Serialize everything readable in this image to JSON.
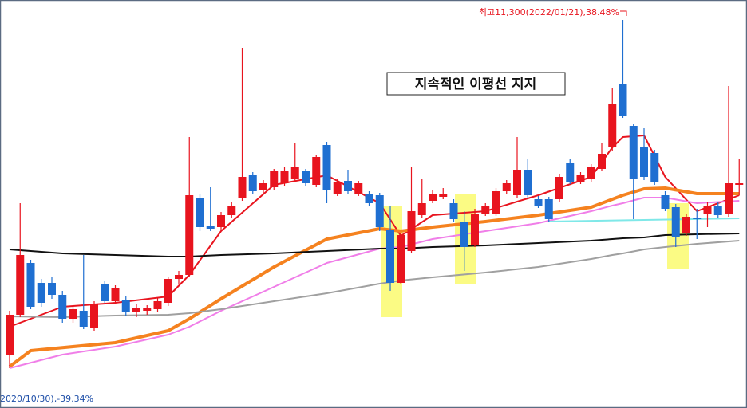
{
  "chart_data": {
    "type": "candlestick",
    "title": "지속적인 이평선 지지",
    "annotations": [
      "최고11,300(2022/01/21),38.48%",
      "2020/10/30),-39.34%"
    ],
    "up_color": "#e8141e",
    "down_color": "#1f6fd1",
    "ylim": [
      4944,
      11600
    ],
    "candles": {
      "open": [
        5815,
        6465,
        7310,
        6985,
        6985,
        6790,
        6400,
        6530,
        6244,
        6972,
        6686,
        6712,
        6504,
        6530,
        6556,
        6660,
        7050,
        7115,
        8376,
        7921,
        7895,
        8090,
        8376,
        8740,
        8506,
        8545,
        8610,
        8675,
        8805,
        8584,
        9234,
        8441,
        8649,
        8441,
        8441,
        8415,
        7856,
        6985,
        7505,
        8090,
        8324,
        8389,
        8285,
        7986,
        7596,
        8116,
        8116,
        8480,
        8415,
        8831,
        8350,
        8350,
        8350,
        8935,
        8636,
        8675,
        8844,
        9195,
        10235,
        9546,
        9195,
        9104,
        8415,
        8220,
        7804,
        8051,
        8116,
        8246,
        8116,
        8584
      ],
      "high": [
        6530,
        8285,
        7362,
        7050,
        7076,
        6855,
        6595,
        7440,
        6686,
        7024,
        6946,
        6764,
        6634,
        6621,
        6738,
        7076,
        7180,
        9364,
        8428,
        8545,
        8142,
        8298,
        10820,
        8792,
        8662,
        8844,
        8870,
        9260,
        8844,
        9078,
        9286,
        8675,
        8831,
        8649,
        8480,
        8454,
        8246,
        7804,
        8870,
        8675,
        8506,
        8532,
        8350,
        8155,
        8194,
        8285,
        8532,
        8662,
        9364,
        9000,
        8402,
        8389,
        8766,
        9000,
        8792,
        8922,
        9260,
        10170,
        11275,
        9585,
        9520,
        9156,
        8480,
        8272,
        8116,
        8194,
        8298,
        8298,
        10196,
        9000
      ],
      "low": [
        5594,
        6426,
        6556,
        6595,
        6725,
        6335,
        6335,
        6231,
        6205,
        6660,
        6634,
        6452,
        6426,
        6465,
        6504,
        6608,
        6972,
        7076,
        7830,
        7830,
        7830,
        8038,
        8324,
        8428,
        8454,
        8506,
        8571,
        8636,
        8558,
        8545,
        8285,
        8402,
        8441,
        8402,
        8246,
        7830,
        6855,
        6959,
        7466,
        8051,
        8285,
        8350,
        7986,
        7180,
        7570,
        8077,
        8077,
        8441,
        8376,
        8376,
        8207,
        7986,
        8311,
        8597,
        8597,
        8636,
        8805,
        9130,
        9676,
        8025,
        8662,
        8584,
        8155,
        7570,
        7752,
        7700,
        7895,
        8051,
        8064,
        8415
      ],
      "close": [
        6465,
        7440,
        6595,
        6660,
        6790,
        6400,
        6556,
        6270,
        6634,
        6686,
        6894,
        6504,
        6582,
        6582,
        6686,
        7050,
        7115,
        8415,
        7895,
        7869,
        8090,
        8246,
        8714,
        8480,
        8610,
        8805,
        8805,
        8870,
        8610,
        9039,
        8506,
        8636,
        8480,
        8610,
        8285,
        7895,
        6985,
        7765,
        8155,
        8285,
        8441,
        8441,
        8025,
        7570,
        8116,
        8246,
        8480,
        8610,
        8831,
        8415,
        8246,
        8025,
        8714,
        8636,
        8740,
        8870,
        9091,
        9910,
        9715,
        8675,
        8714,
        8636,
        8194,
        7726,
        8064,
        8025,
        8246,
        8090,
        8610,
        8610
      ]
    },
    "series": [
      {
        "color": "#e8141e",
        "width": 2,
        "x": [
          0,
          5,
          10,
          15,
          17,
          20,
          25,
          30,
          35,
          37,
          40,
          45,
          50,
          55,
          57,
          58,
          60,
          62,
          65,
          69
        ],
        "values": [
          6270,
          6595,
          6660,
          6764,
          7115,
          7830,
          8584,
          8740,
          8285,
          7752,
          8090,
          8155,
          8415,
          8714,
          9195,
          9364,
          9390,
          8714,
          8155,
          8415
        ]
      },
      {
        "color": "#f5821f",
        "width": 4,
        "x": [
          0,
          2,
          10,
          15,
          17,
          20,
          25,
          30,
          35,
          37,
          40,
          45,
          50,
          55,
          57,
          58,
          60,
          62,
          65,
          69
        ],
        "values": [
          5620,
          5880,
          6010,
          6205,
          6400,
          6725,
          7245,
          7700,
          7869,
          7830,
          7895,
          7986,
          8090,
          8220,
          8350,
          8415,
          8519,
          8532,
          8441,
          8441
        ]
      },
      {
        "color": "#f07ee8",
        "width": 2,
        "x": [
          0,
          5,
          10,
          15,
          17,
          20,
          25,
          30,
          35,
          37,
          40,
          45,
          50,
          55,
          57,
          58,
          60,
          62,
          65,
          69
        ],
        "values": [
          5594,
          5815,
          5945,
          6140,
          6270,
          6530,
          6920,
          7310,
          7544,
          7570,
          7700,
          7830,
          7960,
          8155,
          8246,
          8285,
          8376,
          8376,
          8285,
          8324
        ]
      },
      {
        "color": "#7fe8e8",
        "width": 2,
        "x": [
          51,
          60,
          69
        ],
        "values": [
          7986,
          8012,
          8038
        ]
      },
      {
        "color": "#111111",
        "width": 2,
        "x": [
          0,
          5,
          10,
          15,
          17,
          20,
          25,
          30,
          35,
          37,
          40,
          45,
          50,
          55,
          57,
          58,
          60,
          62,
          65,
          69
        ],
        "values": [
          7531,
          7466,
          7440,
          7414,
          7414,
          7440,
          7466,
          7505,
          7544,
          7544,
          7570,
          7596,
          7635,
          7674,
          7700,
          7713,
          7726,
          7765,
          7778,
          7791
        ]
      },
      {
        "color": "#a0a0a0",
        "width": 2,
        "x": [
          0,
          5,
          10,
          15,
          17,
          20,
          25,
          30,
          35,
          37,
          40,
          45,
          50,
          55,
          57,
          58,
          60,
          62,
          65,
          69
        ],
        "values": [
          6439,
          6426,
          6452,
          6465,
          6491,
          6556,
          6686,
          6816,
          6972,
          7024,
          7076,
          7154,
          7245,
          7375,
          7440,
          7466,
          7531,
          7570,
          7622,
          7674
        ]
      }
    ]
  }
}
